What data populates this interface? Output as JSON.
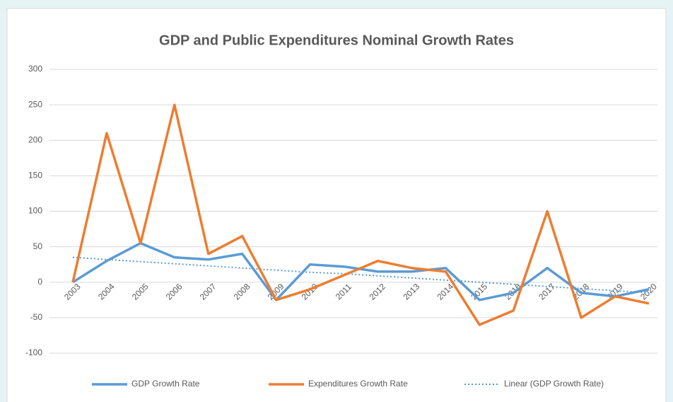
{
  "chart_data": {
    "type": "line",
    "title": "GDP and Public Expenditures Nominal Growth Rates",
    "categories": [
      "2003",
      "2004",
      "2005",
      "2006",
      "2007",
      "2008",
      "2009",
      "2010",
      "2011",
      "2012",
      "2013",
      "2014",
      "2015",
      "2016",
      "2017",
      "2018",
      "2019",
      "2020"
    ],
    "series": [
      {
        "name": "GDP Growth Rate",
        "color": "#5b9bd5",
        "style": "solid",
        "values": [
          0,
          30,
          55,
          35,
          32,
          40,
          -25,
          25,
          22,
          15,
          15,
          20,
          -25,
          -15,
          20,
          -15,
          -20,
          -10
        ]
      },
      {
        "name": "Expenditures Growth Rate",
        "color": "#ed7d31",
        "style": "solid",
        "values": [
          0,
          210,
          55,
          250,
          40,
          65,
          -25,
          -10,
          10,
          30,
          20,
          15,
          -60,
          -40,
          100,
          -50,
          -20,
          -30
        ]
      },
      {
        "name": "Linear (GDP Growth Rate)",
        "color": "#5b9bd5",
        "style": "dotted",
        "values": [
          35,
          32,
          29,
          26,
          23,
          20,
          17,
          14,
          12,
          9,
          6,
          3,
          0,
          -3,
          -6,
          -9,
          -12,
          -15
        ]
      }
    ],
    "ylim": [
      -100,
      300
    ],
    "yticks": [
      -100,
      -50,
      0,
      50,
      100,
      150,
      200,
      250,
      300
    ],
    "grid": true,
    "legend": "bottom"
  }
}
